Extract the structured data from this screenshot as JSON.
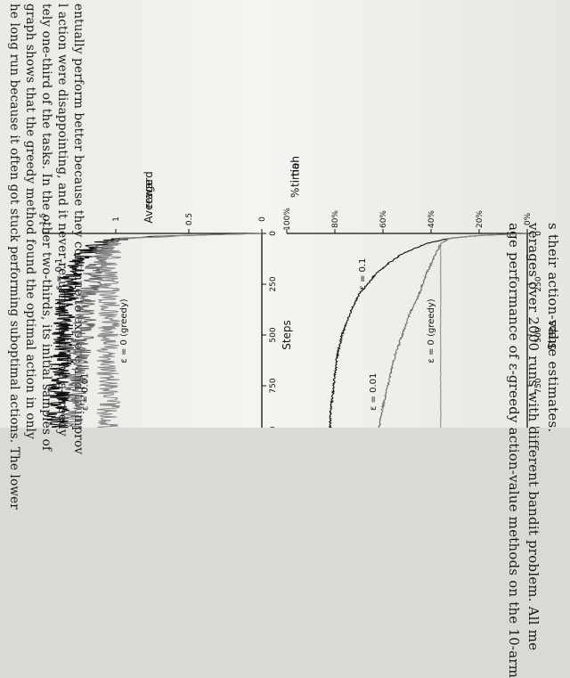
{
  "page": {
    "top_text_lines": [
      "he long run because it often got stuck performing suboptimal actions. The lower",
      "graph shows that the greedy method found the optimal action in only",
      "tely one-third of the tasks. In the other two-thirds, its initial samples of",
      "l action were disappointing, and it never returned to it. The ε-greedy",
      "entually perform better because they continue to explore and to improv"
    ],
    "caption_lines": [
      "age performance of ε-greedy action-value methods on the 10-arm",
      "verages over 2000 runs with different bandit problem.  All me",
      "s their action-value estimates."
    ]
  },
  "chart_data": [
    {
      "type": "line",
      "ylabel": "Average reward",
      "xlabel": "Steps",
      "xlim": [
        0,
        1000
      ],
      "ylim": [
        0,
        1.5
      ],
      "x_ticks": [
        "0",
        "250",
        "500",
        "750",
        "1000"
      ],
      "y_ticks": [
        "0",
        "0.5",
        "1",
        "1.5"
      ],
      "series": [
        {
          "name": "ε = 0.1",
          "color": "#111111",
          "x": [
            0,
            10,
            25,
            50,
            100,
            150,
            200,
            300,
            400,
            500,
            600,
            700,
            800,
            900,
            1000
          ],
          "y": [
            0.0,
            0.55,
            0.95,
            1.12,
            1.22,
            1.27,
            1.3,
            1.33,
            1.35,
            1.36,
            1.37,
            1.38,
            1.39,
            1.4,
            1.41
          ]
        },
        {
          "name": "ε = 0.01",
          "color": "#666666",
          "x": [
            0,
            10,
            25,
            50,
            100,
            150,
            200,
            300,
            400,
            500,
            600,
            700,
            800,
            900,
            1000
          ],
          "y": [
            0.0,
            0.55,
            0.93,
            1.05,
            1.1,
            1.13,
            1.15,
            1.19,
            1.21,
            1.23,
            1.25,
            1.27,
            1.28,
            1.3,
            1.31
          ]
        },
        {
          "name": "ε = 0 (greedy)",
          "color": "#8a8a8a",
          "x": [
            0,
            10,
            25,
            50,
            100,
            150,
            200,
            300,
            400,
            500,
            600,
            700,
            800,
            900,
            1000
          ],
          "y": [
            0.0,
            0.55,
            0.95,
            1.02,
            1.04,
            1.05,
            1.05,
            1.05,
            1.05,
            1.05,
            1.05,
            1.05,
            1.05,
            1.05,
            1.05
          ]
        }
      ]
    },
    {
      "type": "line",
      "ylabel": "% Optimal action",
      "xlabel": "Steps",
      "xlim": [
        0,
        1000
      ],
      "ylim": [
        0,
        100
      ],
      "x_ticks": [
        "0",
        "250",
        "500",
        "750",
        "1000"
      ],
      "y_ticks": [
        "0%",
        "20%",
        "40%",
        "60%",
        "80%",
        "100%"
      ],
      "series": [
        {
          "name": "ε = 0.1",
          "color": "#111111",
          "x": [
            0,
            10,
            25,
            50,
            100,
            150,
            200,
            300,
            400,
            500,
            600,
            700,
            800,
            900,
            1000
          ],
          "y": [
            0,
            20,
            33,
            42,
            52,
            58,
            63,
            70,
            74,
            77,
            79,
            80,
            81,
            82,
            82
          ]
        },
        {
          "name": "ε = 0.01",
          "color": "#666666",
          "x": [
            0,
            10,
            25,
            50,
            100,
            150,
            200,
            300,
            400,
            500,
            600,
            700,
            800,
            900,
            1000
          ],
          "y": [
            0,
            20,
            32,
            36,
            38,
            40,
            42,
            45,
            49,
            52,
            55,
            57,
            59,
            61,
            62
          ]
        },
        {
          "name": "ε = 0 (greedy)",
          "color": "#8a8a8a",
          "x": [
            0,
            10,
            25,
            50,
            100,
            150,
            200,
            300,
            400,
            500,
            600,
            700,
            800,
            900,
            1000
          ],
          "y": [
            0,
            20,
            33,
            36,
            36,
            36,
            36,
            36,
            36,
            36,
            36,
            36,
            36,
            36,
            36
          ]
        }
      ],
      "ylabel_lines": [
        "%",
        "timal",
        "tion"
      ]
    }
  ]
}
